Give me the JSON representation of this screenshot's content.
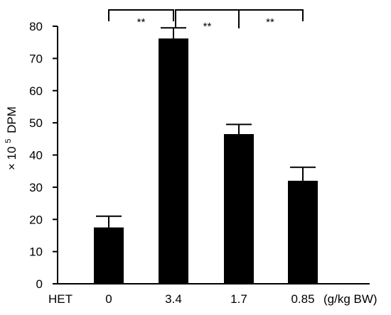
{
  "chart_data": {
    "type": "bar",
    "ylabel": "× 10",
    "ylabel_sup": "5",
    "ylabel_unit": "DPM",
    "x_prefix": "HET",
    "x_unit": "(g/kg BW)",
    "categories": [
      "0",
      "3.4",
      "1.7",
      "0.85"
    ],
    "values": [
      17.5,
      76.2,
      46.5,
      32.0
    ],
    "errors": [
      3.5,
      3.3,
      3.0,
      4.2
    ],
    "ylim": [
      0,
      80
    ],
    "yticks": [
      "0",
      "10",
      "20",
      "30",
      "40",
      "50",
      "60",
      "70",
      "80"
    ],
    "bar_color": "#000000",
    "grid": false,
    "significance": [
      {
        "from": 0,
        "to": 1,
        "label": "**"
      },
      {
        "from": 1,
        "to": 2,
        "label": "**"
      },
      {
        "from": 1,
        "to": 3,
        "label": "**"
      }
    ]
  }
}
